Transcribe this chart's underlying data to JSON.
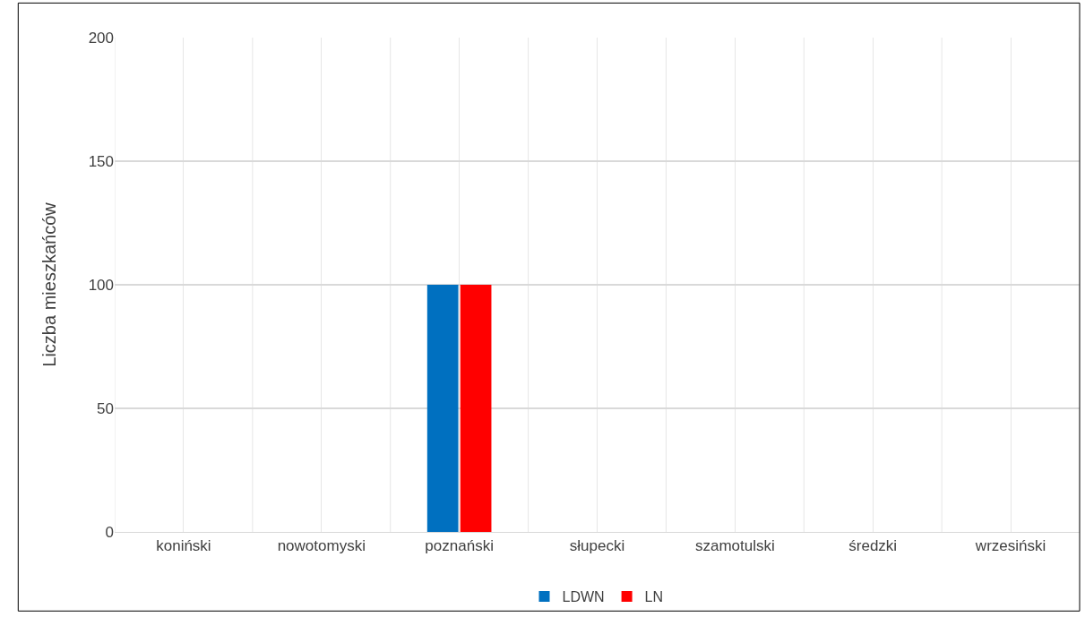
{
  "chart_data": {
    "type": "bar",
    "ylabel": "Liczba mieszkańców",
    "categories": [
      "koniński",
      "nowotomyski",
      "poznański",
      "słupecki",
      "szamotulski",
      "średzki",
      "wrzesiński"
    ],
    "series": [
      {
        "name": "LDWN",
        "color": "#0070c0",
        "values": [
          0,
          0,
          100,
          0,
          0,
          0,
          0
        ]
      },
      {
        "name": "LN",
        "color": "#ff0000",
        "values": [
          0,
          0,
          100,
          0,
          0,
          0,
          0
        ]
      }
    ],
    "ylim": [
      0,
      200
    ],
    "yticks": [
      0,
      50,
      100,
      150,
      200
    ],
    "grid": true,
    "legend": "bottom"
  }
}
